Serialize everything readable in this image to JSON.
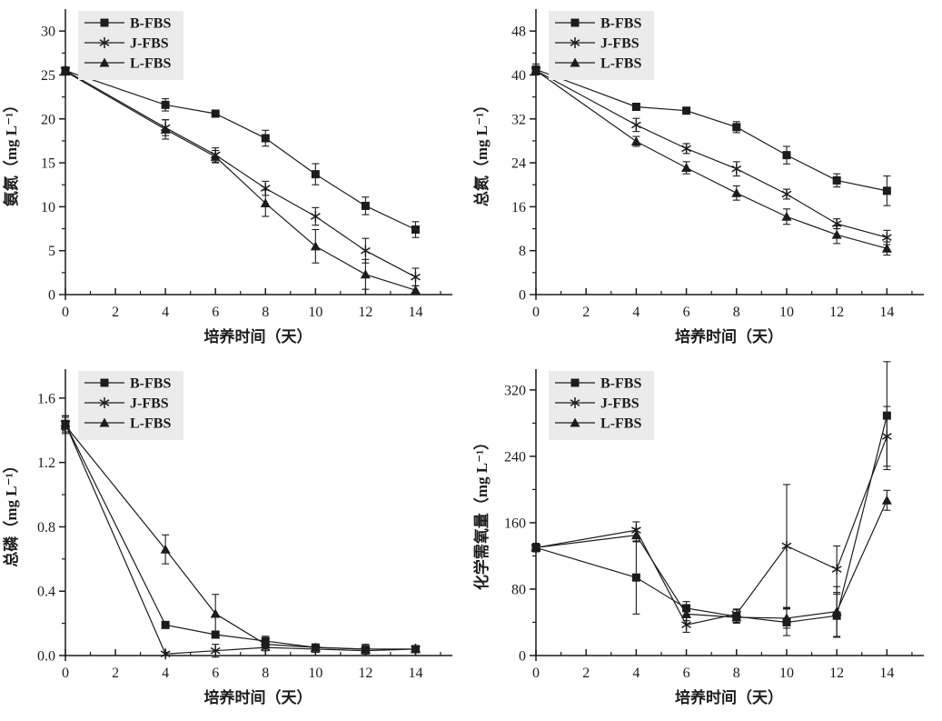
{
  "page": {
    "background": "#ffffff",
    "ink_color": "#1c1c1c",
    "legend_background": "#ebebeb"
  },
  "legend": {
    "position": "top-left",
    "items": [
      {
        "label": "B-FBS",
        "marker": "square-icon"
      },
      {
        "label": "J-FBS",
        "marker": "asterisk-icon"
      },
      {
        "label": "L-FBS",
        "marker": "triangle-icon"
      }
    ]
  },
  "chart_data": [
    {
      "id": "ammonia-nitrogen",
      "type": "line",
      "title": "",
      "xlabel": "培养时间（天）",
      "ylabel": "氨氮（mg L⁻¹）",
      "legend_position": "top-left",
      "x": [
        0,
        4,
        6,
        8,
        10,
        12,
        14
      ],
      "xlim": [
        0,
        15.4
      ],
      "ylim": [
        0,
        32.5
      ],
      "xticks": [
        0,
        2,
        4,
        6,
        8,
        10,
        12,
        14
      ],
      "xminor": [
        1,
        3,
        5,
        7,
        9,
        11,
        13,
        15
      ],
      "yticks": [
        0,
        5,
        10,
        15,
        20,
        25,
        30
      ],
      "ytick_labels": [
        "0",
        "5",
        "10",
        "15",
        "20",
        "25",
        "30"
      ],
      "yminor": [
        2.5,
        7.5,
        12.5,
        17.5,
        22.5,
        27.5
      ],
      "grid": false,
      "series": [
        {
          "name": "B-FBS",
          "marker": "square",
          "values": [
            25.5,
            21.6,
            20.6,
            17.8,
            13.7,
            10.1,
            7.4
          ],
          "errors": [
            0.4,
            0.7,
            0.4,
            0.9,
            1.2,
            1.0,
            0.9
          ]
        },
        {
          "name": "J-FBS",
          "marker": "asterisk",
          "values": [
            25.5,
            19.0,
            15.9,
            12.1,
            8.9,
            5.0,
            2.0
          ],
          "errors": [
            0.4,
            0.9,
            0.8,
            0.8,
            1.0,
            1.4,
            1.0
          ]
        },
        {
          "name": "L-FBS",
          "marker": "triangle",
          "values": [
            25.4,
            18.8,
            15.7,
            10.4,
            5.5,
            2.3,
            0.5
          ],
          "errors": [
            0.4,
            1.1,
            0.7,
            1.5,
            1.9,
            1.7,
            0.5
          ]
        }
      ]
    },
    {
      "id": "total-nitrogen",
      "type": "line",
      "title": "",
      "xlabel": "培养时间（天）",
      "ylabel": "总氮（mg L⁻¹）",
      "legend_position": "top-left",
      "x": [
        0,
        4,
        6,
        8,
        10,
        12,
        14
      ],
      "xlim": [
        0,
        15.4
      ],
      "ylim": [
        0,
        52
      ],
      "xticks": [
        0,
        2,
        4,
        6,
        8,
        10,
        12,
        14
      ],
      "xminor": [
        1,
        3,
        5,
        7,
        9,
        11,
        13,
        15
      ],
      "yticks": [
        0,
        8,
        16,
        24,
        32,
        40,
        48
      ],
      "ytick_labels": [
        "0",
        "8",
        "16",
        "24",
        "32",
        "40",
        "48"
      ],
      "yminor": [
        4,
        12,
        20,
        28,
        36,
        44
      ],
      "grid": false,
      "series": [
        {
          "name": "B-FBS",
          "marker": "square",
          "values": [
            41.0,
            34.2,
            33.5,
            30.5,
            25.4,
            20.8,
            18.9
          ],
          "errors": [
            1.0,
            0.6,
            0.6,
            1.0,
            1.6,
            1.2,
            2.7
          ]
        },
        {
          "name": "J-FBS",
          "marker": "asterisk",
          "values": [
            40.8,
            30.9,
            26.6,
            22.9,
            18.3,
            12.9,
            10.4
          ],
          "errors": [
            0.6,
            1.2,
            0.9,
            1.3,
            0.9,
            0.9,
            1.3
          ]
        },
        {
          "name": "L-FBS",
          "marker": "triangle",
          "values": [
            40.8,
            27.9,
            23.1,
            18.5,
            14.2,
            10.9,
            8.4
          ],
          "errors": [
            0.6,
            0.9,
            1.1,
            1.3,
            1.4,
            1.6,
            1.2
          ]
        }
      ]
    },
    {
      "id": "total-phosphorus",
      "type": "line",
      "title": "",
      "xlabel": "培养时间（天）",
      "ylabel": "总磷（mg L⁻¹）",
      "legend_position": "top-left",
      "x": [
        0,
        4,
        6,
        8,
        10,
        12,
        14
      ],
      "xlim": [
        0,
        15.4
      ],
      "ylim": [
        0,
        1.78
      ],
      "xticks": [
        0,
        2,
        4,
        6,
        8,
        10,
        12,
        14
      ],
      "xminor": [
        1,
        3,
        5,
        7,
        9,
        11,
        13,
        15
      ],
      "yticks": [
        0,
        0.4,
        0.8,
        1.2,
        1.6
      ],
      "ytick_labels": [
        "0.0",
        "0.4",
        "0.8",
        "1.2",
        "1.6"
      ],
      "yminor": [
        0.2,
        0.6,
        1.0,
        1.4
      ],
      "grid": false,
      "series": [
        {
          "name": "B-FBS",
          "marker": "square",
          "values": [
            1.44,
            0.19,
            0.13,
            0.09,
            0.05,
            0.04,
            0.04
          ],
          "errors": [
            0.05,
            0.02,
            0.02,
            0.03,
            0.02,
            0.03,
            0.02
          ]
        },
        {
          "name": "J-FBS",
          "marker": "asterisk",
          "values": [
            1.44,
            0.01,
            0.03,
            0.05,
            0.04,
            0.03,
            0.04
          ],
          "errors": [
            0.05,
            0.01,
            0.04,
            0.02,
            0.02,
            0.02,
            0.01
          ]
        },
        {
          "name": "L-FBS",
          "marker": "triangle",
          "values": [
            1.43,
            0.66,
            0.26,
            0.07,
            0.05,
            0.04,
            0.04
          ],
          "errors": [
            0.05,
            0.09,
            0.12,
            0.03,
            0.02,
            0.02,
            0.02
          ]
        }
      ]
    },
    {
      "id": "chemical-oxygen-demand",
      "type": "line",
      "title": "",
      "xlabel": "培养时间（天）",
      "ylabel": "化学需氧量（mg L⁻¹）",
      "legend_position": "top-left",
      "x": [
        0,
        4,
        6,
        8,
        10,
        12,
        14
      ],
      "xlim": [
        0,
        15.4
      ],
      "ylim": [
        0,
        345
      ],
      "xticks": [
        0,
        2,
        4,
        6,
        8,
        10,
        12,
        14
      ],
      "xminor": [
        1,
        3,
        5,
        7,
        9,
        11,
        13,
        15
      ],
      "yticks": [
        0,
        80,
        160,
        240,
        320
      ],
      "ytick_labels": [
        "0",
        "80",
        "160",
        "240",
        "320"
      ],
      "yminor": [
        40,
        120,
        200,
        280
      ],
      "grid": false,
      "series": [
        {
          "name": "B-FBS",
          "marker": "square",
          "values": [
            130,
            94,
            57,
            47,
            40,
            48,
            289
          ],
          "errors": [
            5,
            44,
            8,
            8,
            16,
            26,
            65
          ]
        },
        {
          "name": "J-FBS",
          "marker": "asterisk",
          "values": [
            130,
            151,
            37,
            50,
            132,
            104,
            264
          ],
          "errors": [
            5,
            10,
            9,
            6,
            74,
            28,
            36
          ]
        },
        {
          "name": "L-FBS",
          "marker": "triangle",
          "values": [
            130,
            145,
            50,
            46,
            45,
            53,
            187
          ],
          "errors": [
            5,
            8,
            8,
            6,
            12,
            30,
            12
          ]
        }
      ]
    }
  ]
}
